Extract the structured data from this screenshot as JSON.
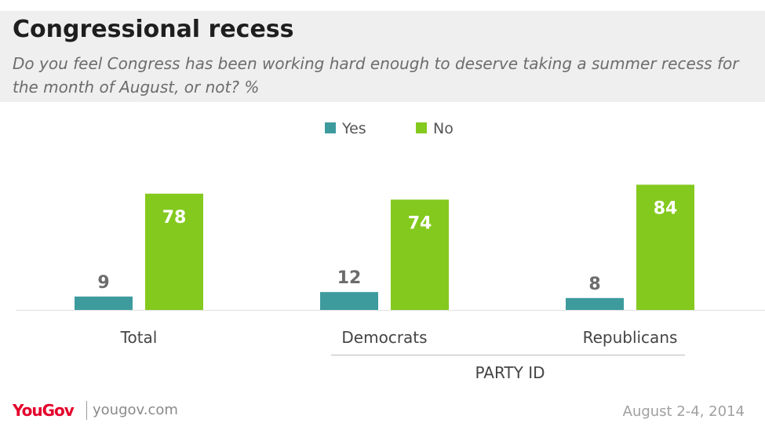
{
  "header": {
    "title": "Congressional recess",
    "subtitle": "Do you feel Congress has been working hard enough to deserve taking a summer recess for the month of August, or not? %"
  },
  "chart_data": {
    "type": "bar",
    "categories": [
      "Total",
      "Democrats",
      "Republicans"
    ],
    "group_label": {
      "text": "PARTY ID",
      "spans": [
        "Democrats",
        "Republicans"
      ]
    },
    "series": [
      {
        "name": "Yes",
        "color": "#3d9b9d",
        "values": [
          9,
          12,
          8
        ]
      },
      {
        "name": "No",
        "color": "#84c91e",
        "values": [
          78,
          74,
          84
        ]
      }
    ],
    "legend": "top-center",
    "grid": false,
    "ylim": [
      0,
      100
    ]
  },
  "footer": {
    "logo": "YouGov",
    "url": "yougov.com",
    "date": "August 2-4, 2014"
  }
}
